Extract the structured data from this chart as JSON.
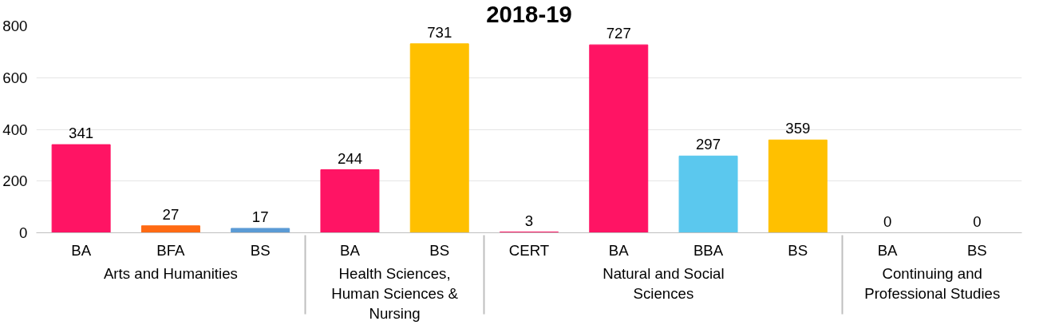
{
  "chart_data": {
    "type": "bar",
    "title": "2018-19",
    "categories": [
      "BA",
      "BFA",
      "BS",
      null,
      "BA",
      "BS",
      null,
      "CERT",
      "BA",
      "BBA",
      "BS",
      null,
      "BA",
      "BS"
    ],
    "values": [
      341,
      27,
      17,
      null,
      244,
      731,
      null,
      3,
      727,
      297,
      359,
      null,
      0,
      0
    ],
    "colors": [
      "#ff1464",
      "#ff6a13",
      "#5b9bd5",
      "#ffffff",
      "#ff1464",
      "#ffc000",
      "#ffffff",
      "#ff1464",
      "#ff1464",
      "#5bc8ee",
      "#ffc000",
      "#ffffff",
      "#ff1464",
      "#ff1464"
    ],
    "annotations": [
      "Arts and Humanities",
      "Health Sciences, Human Sciences & Nursing",
      "Natural and Social Sciences",
      "Continuing and Professional Studies"
    ],
    "ylim": [
      0,
      800
    ],
    "yticks": [
      0,
      200,
      400,
      600,
      800
    ],
    "grid": "y",
    "data_labels": true
  }
}
